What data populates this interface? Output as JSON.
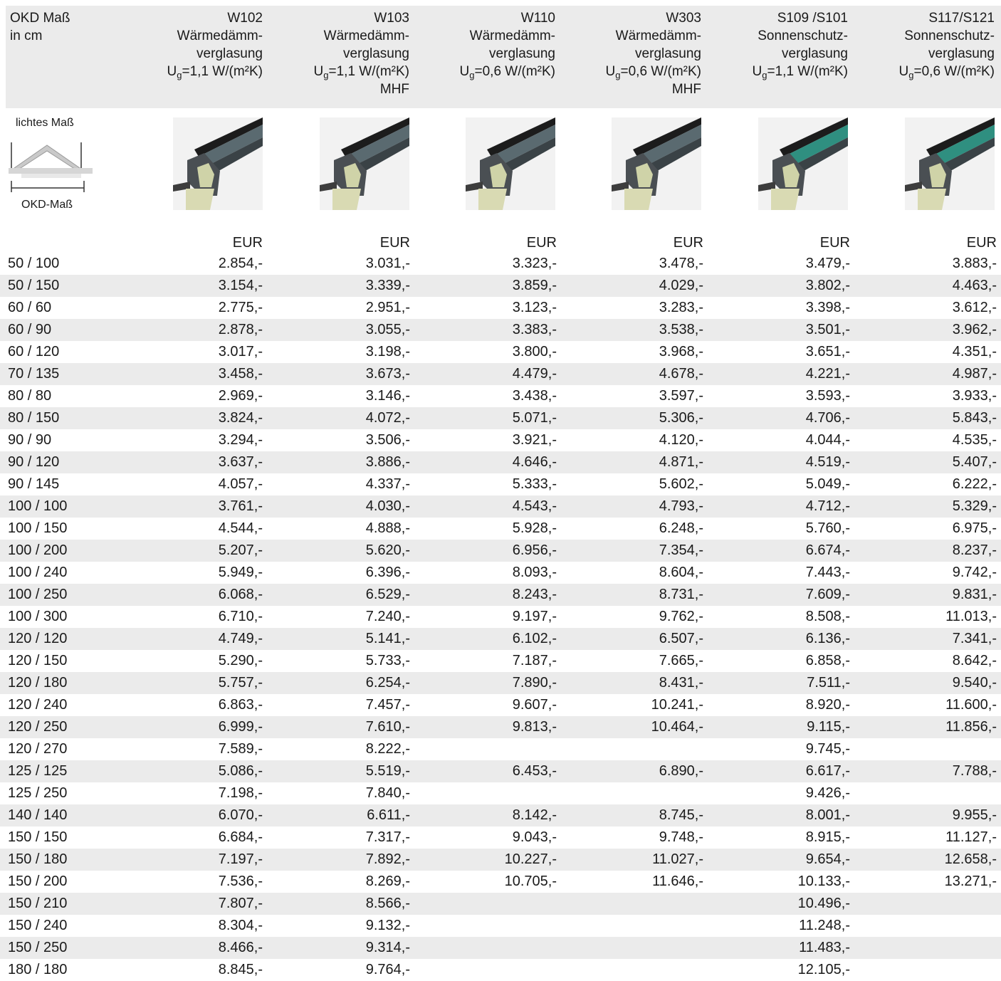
{
  "header": {
    "label": [
      "OKD Maß",
      "in cm"
    ],
    "columns": [
      {
        "lines": [
          "W102",
          "Wärmedämm-",
          "verglasung"
        ],
        "u_value": {
          "symbol": "U",
          "sub": "g",
          "text": "=1,1 W/(m²K)"
        }
      },
      {
        "lines": [
          "W103",
          "Wärmedämm-",
          "verglasung"
        ],
        "u_value": {
          "symbol": "U",
          "sub": "g",
          "text": "=1,1 W/(m²K)"
        },
        "extra": "MHF"
      },
      {
        "lines": [
          "W110",
          "Wärmedämm-",
          "verglasung"
        ],
        "u_value": {
          "symbol": "U",
          "sub": "g",
          "text": "=0,6 W/(m²K)"
        }
      },
      {
        "lines": [
          "W303",
          "Wärmedämm-",
          "verglasung"
        ],
        "u_value": {
          "symbol": "U",
          "sub": "g",
          "text": "=0,6 W/(m²K)"
        },
        "extra": "MHF"
      },
      {
        "lines": [
          "S109 /S101",
          "Sonnenschutz-",
          "verglasung"
        ],
        "u_value": {
          "symbol": "U",
          "sub": "g",
          "text": "=1,1 W/(m²K)"
        }
      },
      {
        "lines": [
          "S117/S121",
          "Sonnenschutz-",
          "verglasung"
        ],
        "u_value": {
          "symbol": "U",
          "sub": "g",
          "text": "=0,6 W/(m²K)"
        }
      }
    ]
  },
  "diagram": {
    "top_label": "lichtes Maß",
    "bottom_label": "OKD-Maß"
  },
  "table": {
    "currency": [
      "EUR",
      "EUR",
      "EUR",
      "EUR",
      "EUR",
      "EUR"
    ],
    "rows": [
      [
        "50 / 100",
        "2.854,-",
        "3.031,-",
        "3.323,-",
        "3.478,-",
        "3.479,-",
        "3.883,-"
      ],
      [
        "50 / 150",
        "3.154,-",
        "3.339,-",
        "3.859,-",
        "4.029,-",
        "3.802,-",
        "4.463,-"
      ],
      [
        "60 / 60",
        "2.775,-",
        "2.951,-",
        "3.123,-",
        "3.283,-",
        "3.398,-",
        "3.612,-"
      ],
      [
        "60 / 90",
        "2.878,-",
        "3.055,-",
        "3.383,-",
        "3.538,-",
        "3.501,-",
        "3.962,-"
      ],
      [
        "60 / 120",
        "3.017,-",
        "3.198,-",
        "3.800,-",
        "3.968,-",
        "3.651,-",
        "4.351,-"
      ],
      [
        "70 / 135",
        "3.458,-",
        "3.673,-",
        "4.479,-",
        "4.678,-",
        "4.221,-",
        "4.987,-"
      ],
      [
        "80 / 80",
        "2.969,-",
        "3.146,-",
        "3.438,-",
        "3.597,-",
        "3.593,-",
        "3.933,-"
      ],
      [
        "80 / 150",
        "3.824,-",
        "4.072,-",
        "5.071,-",
        "5.306,-",
        "4.706,-",
        "5.843,-"
      ],
      [
        "90 / 90",
        "3.294,-",
        "3.506,-",
        "3.921,-",
        "4.120,-",
        "4.044,-",
        "4.535,-"
      ],
      [
        "90 / 120",
        "3.637,-",
        "3.886,-",
        "4.646,-",
        "4.871,-",
        "4.519,-",
        "5.407,-"
      ],
      [
        "90 / 145",
        "4.057,-",
        "4.337,-",
        "5.333,-",
        "5.602,-",
        "5.049,-",
        "6.222,-"
      ],
      [
        "100 / 100",
        "3.761,-",
        "4.030,-",
        "4.543,-",
        "4.793,-",
        "4.712,-",
        "5.329,-"
      ],
      [
        "100 / 150",
        "4.544,-",
        "4.888,-",
        "5.928,-",
        "6.248,-",
        "5.760,-",
        "6.975,-"
      ],
      [
        "100 / 200",
        "5.207,-",
        "5.620,-",
        "6.956,-",
        "7.354,-",
        "6.674,-",
        "8.237,-"
      ],
      [
        "100 / 240",
        "5.949,-",
        "6.396,-",
        "8.093,-",
        "8.604,-",
        "7.443,-",
        "9.742,-"
      ],
      [
        "100 / 250",
        "6.068,-",
        "6.529,-",
        "8.243,-",
        "8.731,-",
        "7.609,-",
        "9.831,-"
      ],
      [
        "100 / 300",
        "6.710,-",
        "7.240,-",
        "9.197,-",
        "9.762,-",
        "8.508,-",
        "11.013,-"
      ],
      [
        "120 / 120",
        "4.749,-",
        "5.141,-",
        "6.102,-",
        "6.507,-",
        "6.136,-",
        "7.341,-"
      ],
      [
        "120 / 150",
        "5.290,-",
        "5.733,-",
        "7.187,-",
        "7.665,-",
        "6.858,-",
        "8.642,-"
      ],
      [
        "120 / 180",
        "5.757,-",
        "6.254,-",
        "7.890,-",
        "8.431,-",
        "7.511,-",
        "9.540,-"
      ],
      [
        "120 / 240",
        "6.863,-",
        "7.457,-",
        "9.607,-",
        "10.241,-",
        "8.920,-",
        "11.600,-"
      ],
      [
        "120 / 250",
        "6.999,-",
        "7.610,-",
        "9.813,-",
        "10.464,-",
        "9.115,-",
        "11.856,-"
      ],
      [
        "120 / 270",
        "7.589,-",
        "8.222,-",
        null,
        null,
        "9.745,-",
        null
      ],
      [
        "125 / 125",
        "5.086,-",
        "5.519,-",
        "6.453,-",
        "6.890,-",
        "6.617,-",
        "7.788,-"
      ],
      [
        "125 / 250",
        "7.198,-",
        "7.840,-",
        null,
        null,
        "9.426,-",
        null
      ],
      [
        "140 / 140",
        "6.070,-",
        "6.611,-",
        "8.142,-",
        "8.745,-",
        "8.001,-",
        "9.955,-"
      ],
      [
        "150 / 150",
        "6.684,-",
        "7.317,-",
        "9.043,-",
        "9.748,-",
        "8.915,-",
        "11.127,-"
      ],
      [
        "150 / 180",
        "7.197,-",
        "7.892,-",
        "10.227,-",
        "11.027,-",
        "9.654,-",
        "12.658,-"
      ],
      [
        "150 / 200",
        "7.536,-",
        "8.269,-",
        "10.705,-",
        "11.646,-",
        "10.133,-",
        "13.271,-"
      ],
      [
        "150 / 210",
        "7.807,-",
        "8.566,-",
        null,
        null,
        "10.496,-",
        null
      ],
      [
        "150 / 240",
        "8.304,-",
        "9.132,-",
        null,
        null,
        "11.248,-",
        null
      ],
      [
        "150 / 250",
        "8.466,-",
        "9.314,-",
        null,
        null,
        "11.483,-",
        null
      ],
      [
        "180 / 180",
        "8.845,-",
        "9.764,-",
        null,
        null,
        "12.105,-",
        null
      ]
    ]
  }
}
